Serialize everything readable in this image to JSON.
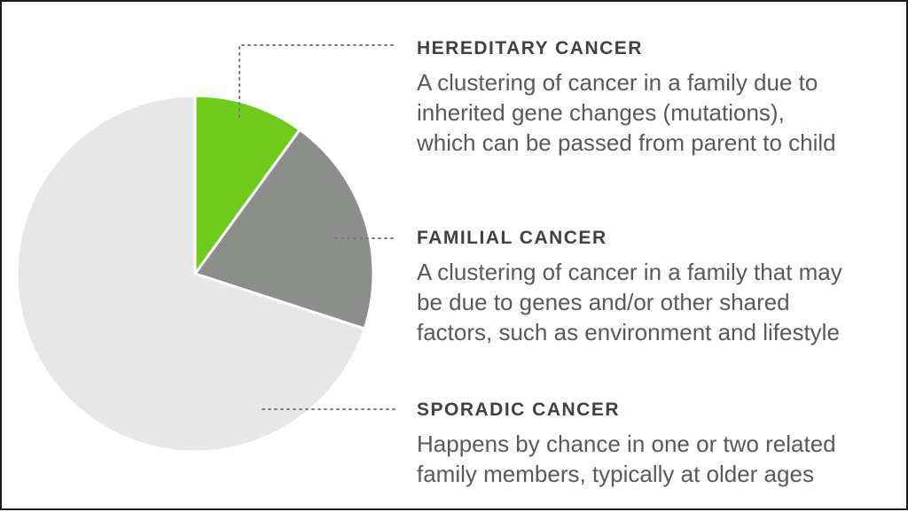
{
  "chart_data": {
    "type": "pie",
    "title": "",
    "slices": [
      {
        "label": "HEREDITARY CANCER",
        "value": 10,
        "color": "#6fcc1a",
        "description": [
          "A clustering of cancer in a family due to",
          "inherited gene changes (mutations),",
          "which can be passed from parent to child"
        ]
      },
      {
        "label": "FAMILIAL CANCER",
        "value": 20,
        "color": "#8b8e8b",
        "description": [
          "A clustering of cancer in a family that may",
          "be due to genes and/or other shared",
          "factors, such as environment and lifestyle"
        ]
      },
      {
        "label": "SPORADIC CANCER",
        "value": 70,
        "color": "#e6e7e6",
        "description": [
          "Happens by chance in one or two related",
          "family members, typically at older ages"
        ]
      }
    ],
    "legend_position": "right",
    "slice_border_color": "#ffffff",
    "leader_line_color": "#7a7a7a"
  }
}
